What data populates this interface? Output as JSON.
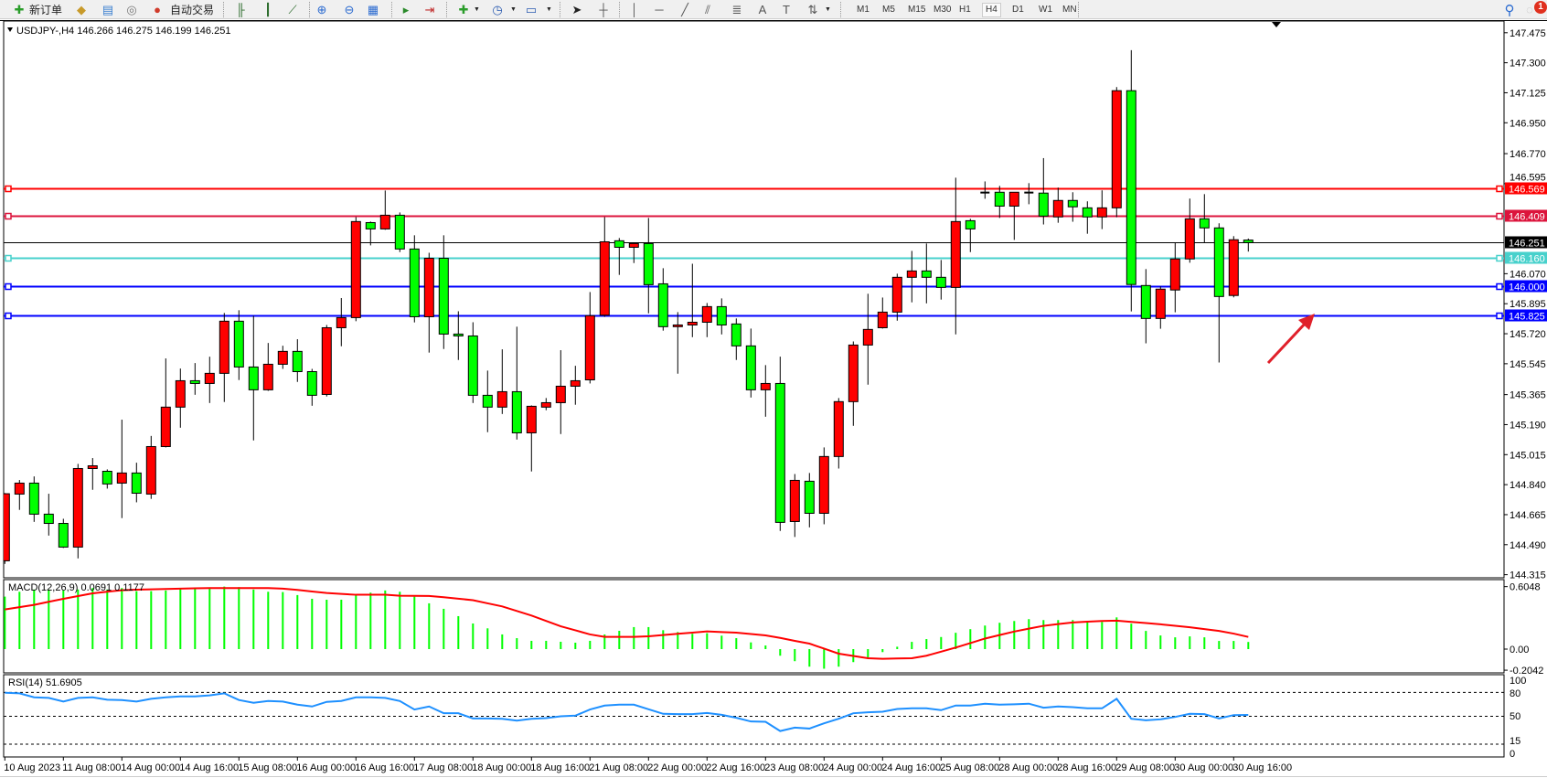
{
  "toolbar": {
    "new_order_label": "新订单",
    "auto_trade_label": "自动交易",
    "icons": [
      "new-order-icon",
      "history-icon",
      "terminal-icon",
      "signals-icon",
      "auto-trading-icon",
      "bar-chart-icon",
      "candlestick-icon",
      "line-chart-icon",
      "zoom-in-icon",
      "zoom-out-icon",
      "tile-windows-icon",
      "autoscroll-icon",
      "chart-shift-icon",
      "indicators-icon",
      "periods-icon",
      "templates-icon",
      "cursor-icon",
      "crosshair-icon",
      "vertical-line-icon",
      "horizontal-line-icon",
      "trendline-icon",
      "equidistant-channel-icon",
      "fibonacci-icon",
      "text-icon",
      "text-label-icon",
      "arrows-icon",
      "search-icon",
      "notifications-icon"
    ],
    "timeframes": [
      "M1",
      "M5",
      "M15",
      "M30",
      "H1",
      "H4",
      "D1",
      "W1",
      "MN"
    ],
    "active_timeframe": "H4",
    "notification_count": "1"
  },
  "chart": {
    "header": "USDJPY-,H4  146.266 146.275 146.199 146.251",
    "macd_label": "MACD(12,26,9) 0.0691 0.1177",
    "rsi_label": "RSI(14) 51.6905",
    "colors": {
      "bull": "#ff0000",
      "bear": "#00ff00",
      "macd_hist": "#00ff00",
      "signal": "#ff0000",
      "rsi": "#1e90ff"
    }
  },
  "chart_data": {
    "type": "candlestick",
    "symbol": "USDJPY-",
    "timeframe": "H4",
    "ylim": [
      144.315,
      147.475
    ],
    "price_axis": {
      "ticks": [
        "147.475",
        "147.300",
        "147.125",
        "146.950",
        "146.770",
        "146.595",
        "146.070",
        "145.895",
        "145.720",
        "145.545",
        "145.365",
        "145.190",
        "145.015",
        "144.840",
        "144.665",
        "144.490",
        "144.315"
      ]
    },
    "time_axis": {
      "labels": [
        "10 Aug 2023",
        "11 Aug 08:00",
        "14 Aug 00:00",
        "14 Aug 16:00",
        "15 Aug 08:00",
        "16 Aug 00:00",
        "16 Aug 16:00",
        "17 Aug 08:00",
        "18 Aug 00:00",
        "18 Aug 16:00",
        "21 Aug 08:00",
        "22 Aug 00:00",
        "22 Aug 16:00",
        "23 Aug 08:00",
        "24 Aug 00:00",
        "24 Aug 16:00",
        "25 Aug 08:00",
        "28 Aug 00:00",
        "28 Aug 16:00",
        "29 Aug 08:00",
        "30 Aug 00:00",
        "30 Aug 16:00"
      ],
      "every_n_bars": 4
    },
    "horizontal_lines": [
      {
        "price": 146.569,
        "label": "146.569",
        "color": "#ff0000"
      },
      {
        "price": 146.409,
        "label": "146.409",
        "color": "#dc143c"
      },
      {
        "price": 146.251,
        "label": "146.251",
        "color": "#000000",
        "bid_line": true
      },
      {
        "price": 146.16,
        "label": "146.160",
        "color": "#48d1cc"
      },
      {
        "price": 146.0,
        "label": "146.000",
        "color": "#0000ff"
      },
      {
        "price": 145.825,
        "label": "145.825",
        "color": "#0000ff"
      }
    ],
    "ohlc": [
      [
        144.396,
        144.791,
        144.378,
        144.787
      ],
      [
        144.785,
        144.867,
        144.693,
        144.849
      ],
      [
        144.849,
        144.888,
        144.623,
        144.668
      ],
      [
        144.668,
        144.787,
        144.543,
        144.614
      ],
      [
        144.614,
        144.641,
        144.471,
        144.476
      ],
      [
        144.476,
        144.961,
        144.41,
        144.934
      ],
      [
        144.934,
        144.995,
        144.81,
        144.95
      ],
      [
        144.918,
        144.929,
        144.817,
        144.844
      ],
      [
        144.849,
        145.219,
        144.645,
        144.908
      ],
      [
        144.908,
        144.968,
        144.737,
        144.79
      ],
      [
        144.785,
        145.124,
        144.757,
        145.062
      ],
      [
        145.062,
        145.576,
        145.057,
        145.292
      ],
      [
        145.292,
        145.517,
        145.172,
        145.446
      ],
      [
        145.446,
        145.549,
        145.364,
        145.43
      ],
      [
        145.43,
        145.586,
        145.316,
        145.489
      ],
      [
        145.489,
        145.841,
        145.322,
        145.793
      ],
      [
        145.793,
        145.857,
        145.45,
        145.526
      ],
      [
        145.526,
        145.825,
        145.098,
        145.393
      ],
      [
        145.393,
        145.666,
        145.387,
        145.542
      ],
      [
        145.542,
        145.65,
        145.515,
        145.617
      ],
      [
        145.617,
        145.688,
        145.439,
        145.499
      ],
      [
        145.499,
        145.515,
        145.3,
        145.361
      ],
      [
        145.366,
        145.771,
        145.354,
        145.755
      ],
      [
        145.755,
        145.928,
        145.647,
        145.814
      ],
      [
        145.814,
        146.4,
        145.793,
        146.374
      ],
      [
        146.368,
        146.374,
        146.235,
        146.331
      ],
      [
        146.331,
        146.555,
        146.326,
        146.411
      ],
      [
        146.411,
        146.427,
        146.196,
        146.214
      ],
      [
        146.214,
        146.294,
        145.786,
        145.819
      ],
      [
        145.819,
        146.192,
        145.61,
        146.16
      ],
      [
        146.16,
        146.294,
        145.631,
        145.718
      ],
      [
        145.718,
        145.851,
        145.567,
        145.707
      ],
      [
        145.707,
        145.787,
        145.316,
        145.361
      ],
      [
        145.361,
        145.505,
        145.146,
        145.292
      ],
      [
        145.292,
        145.629,
        145.252,
        145.382
      ],
      [
        145.382,
        145.761,
        145.103,
        145.142
      ],
      [
        145.142,
        145.302,
        144.917,
        145.297
      ],
      [
        145.292,
        145.345,
        145.274,
        145.318
      ],
      [
        145.318,
        145.624,
        145.135,
        145.414
      ],
      [
        145.414,
        145.533,
        145.306,
        145.446
      ],
      [
        145.451,
        145.963,
        145.43,
        145.825
      ],
      [
        145.828,
        146.4,
        145.818,
        146.256
      ],
      [
        146.262,
        146.278,
        146.063,
        146.224
      ],
      [
        146.224,
        146.246,
        146.132,
        146.246
      ],
      [
        146.246,
        146.395,
        145.839,
        146.006
      ],
      [
        146.011,
        146.102,
        145.738,
        145.761
      ],
      [
        145.761,
        145.846,
        145.487,
        145.771
      ],
      [
        145.771,
        146.128,
        145.7,
        145.787
      ],
      [
        145.787,
        145.899,
        145.7,
        145.878
      ],
      [
        145.878,
        145.926,
        145.716,
        145.771
      ],
      [
        145.777,
        145.809,
        145.567,
        145.649
      ],
      [
        145.649,
        145.75,
        145.348,
        145.393
      ],
      [
        145.393,
        145.537,
        145.236,
        145.43
      ],
      [
        145.43,
        145.586,
        144.57,
        144.62
      ],
      [
        144.625,
        144.902,
        144.535,
        144.865
      ],
      [
        144.86,
        144.908,
        144.591,
        144.673
      ],
      [
        144.673,
        145.057,
        144.609,
        145.004
      ],
      [
        145.004,
        145.345,
        144.934,
        145.324
      ],
      [
        145.324,
        145.675,
        145.183,
        145.654
      ],
      [
        145.654,
        145.953,
        145.423,
        145.745
      ],
      [
        145.755,
        145.931,
        145.75,
        145.846
      ],
      [
        145.846,
        146.07,
        145.796,
        146.049
      ],
      [
        146.049,
        146.203,
        145.903,
        146.086
      ],
      [
        146.086,
        146.246,
        145.897,
        146.049
      ],
      [
        146.049,
        146.15,
        145.919,
        145.99
      ],
      [
        145.99,
        146.63,
        145.716,
        146.374
      ],
      [
        146.379,
        146.39,
        146.196,
        146.331
      ],
      [
        146.543,
        146.608,
        146.507,
        146.543
      ],
      [
        146.545,
        146.582,
        146.395,
        146.464
      ],
      [
        146.464,
        146.545,
        146.267,
        146.545
      ],
      [
        146.543,
        146.598,
        146.475,
        146.543
      ],
      [
        146.54,
        146.744,
        146.357,
        146.406
      ],
      [
        146.401,
        146.572,
        146.367,
        146.497
      ],
      [
        146.497,
        146.545,
        146.373,
        146.46
      ],
      [
        146.454,
        146.492,
        146.303,
        146.401
      ],
      [
        146.401,
        146.556,
        146.33,
        146.454
      ],
      [
        146.454,
        147.158,
        146.399,
        147.137
      ],
      [
        147.137,
        147.373,
        145.85,
        146.007
      ],
      [
        146.001,
        146.097,
        145.664,
        145.809
      ],
      [
        145.809,
        145.996,
        145.749,
        145.98
      ],
      [
        145.975,
        146.252,
        145.845,
        146.156
      ],
      [
        146.156,
        146.508,
        146.134,
        146.39
      ],
      [
        146.39,
        146.534,
        146.252,
        146.337
      ],
      [
        146.337,
        146.364,
        145.552,
        145.937
      ],
      [
        145.943,
        146.289,
        145.932,
        146.268
      ],
      [
        146.266,
        146.275,
        146.199,
        146.251
      ]
    ],
    "macd": {
      "params": "12,26,9",
      "axis_ticks": [
        "0.6048",
        "0.00",
        "-0.2042"
      ],
      "ylim": [
        -0.2042,
        0.6048
      ],
      "histogram": [
        0.508,
        0.555,
        0.576,
        0.576,
        0.567,
        0.576,
        0.591,
        0.576,
        0.591,
        0.561,
        0.561,
        0.567,
        0.591,
        0.591,
        0.597,
        0.605,
        0.6,
        0.576,
        0.555,
        0.552,
        0.523,
        0.487,
        0.478,
        0.478,
        0.526,
        0.546,
        0.567,
        0.555,
        0.508,
        0.443,
        0.39,
        0.319,
        0.248,
        0.201,
        0.142,
        0.106,
        0.08,
        0.08,
        0.071,
        0.062,
        0.08,
        0.142,
        0.177,
        0.213,
        0.213,
        0.183,
        0.165,
        0.148,
        0.154,
        0.13,
        0.106,
        0.065,
        0.035,
        -0.064,
        -0.117,
        -0.17,
        -0.19,
        -0.17,
        -0.126,
        -0.082,
        -0.029,
        0.023,
        0.07,
        0.097,
        0.117,
        0.158,
        0.193,
        0.228,
        0.255,
        0.272,
        0.29,
        0.281,
        0.281,
        0.281,
        0.263,
        0.263,
        0.307,
        0.246,
        0.176,
        0.132,
        0.114,
        0.123,
        0.114,
        0.079,
        0.079,
        0.069
      ],
      "signal": [
        0.384,
        0.406,
        0.428,
        0.458,
        0.487,
        0.513,
        0.54,
        0.555,
        0.57,
        0.575,
        0.579,
        0.582,
        0.585,
        0.588,
        0.591,
        0.591,
        0.591,
        0.591,
        0.591,
        0.585,
        0.573,
        0.558,
        0.543,
        0.534,
        0.526,
        0.526,
        0.526,
        0.517,
        0.515,
        0.514,
        0.502,
        0.488,
        0.473,
        0.443,
        0.413,
        0.369,
        0.325,
        0.273,
        0.221,
        0.182,
        0.142,
        0.118,
        0.118,
        0.118,
        0.124,
        0.136,
        0.148,
        0.159,
        0.171,
        0.165,
        0.159,
        0.146,
        0.133,
        0.108,
        0.08,
        0.053,
        0.005,
        -0.044,
        -0.066,
        -0.088,
        -0.094,
        -0.091,
        -0.088,
        -0.064,
        -0.025,
        0.015,
        0.058,
        0.102,
        0.136,
        0.17,
        0.198,
        0.225,
        0.242,
        0.258,
        0.265,
        0.272,
        0.275,
        0.263,
        0.252,
        0.24,
        0.226,
        0.211,
        0.194,
        0.176,
        0.15,
        0.118
      ]
    },
    "rsi": {
      "period": 14,
      "axis_ticks": [
        "100",
        "80",
        "50",
        "15",
        "0"
      ],
      "levels": [
        80,
        50,
        15
      ],
      "values": [
        79.6,
        78.8,
        73.8,
        73.1,
        68.5,
        73.1,
        73.8,
        70.8,
        70.4,
        68.5,
        71.9,
        73.8,
        75,
        75,
        76.2,
        78.8,
        70.4,
        66.9,
        69.2,
        68.5,
        64.6,
        62.3,
        68.1,
        69.2,
        73.8,
        73.8,
        73.1,
        69.2,
        58.5,
        62.3,
        53.8,
        53.8,
        47.3,
        47.3,
        46.9,
        44.6,
        46.9,
        47.7,
        50,
        50.8,
        58.5,
        63.5,
        64.6,
        64.6,
        58.8,
        53.1,
        52.7,
        52.7,
        54.2,
        51.9,
        48.1,
        43.5,
        43.1,
        31.5,
        35.8,
        34.6,
        41.2,
        46.9,
        53.8,
        55,
        55.8,
        59.2,
        60,
        60,
        57.7,
        63.5,
        63.5,
        65.8,
        64.6,
        65,
        65.8,
        60.8,
        62.3,
        61.5,
        60,
        60,
        71.9,
        46.9,
        45,
        46.2,
        49.2,
        53.1,
        52.7,
        47.3,
        51.5,
        51.69
      ]
    }
  }
}
